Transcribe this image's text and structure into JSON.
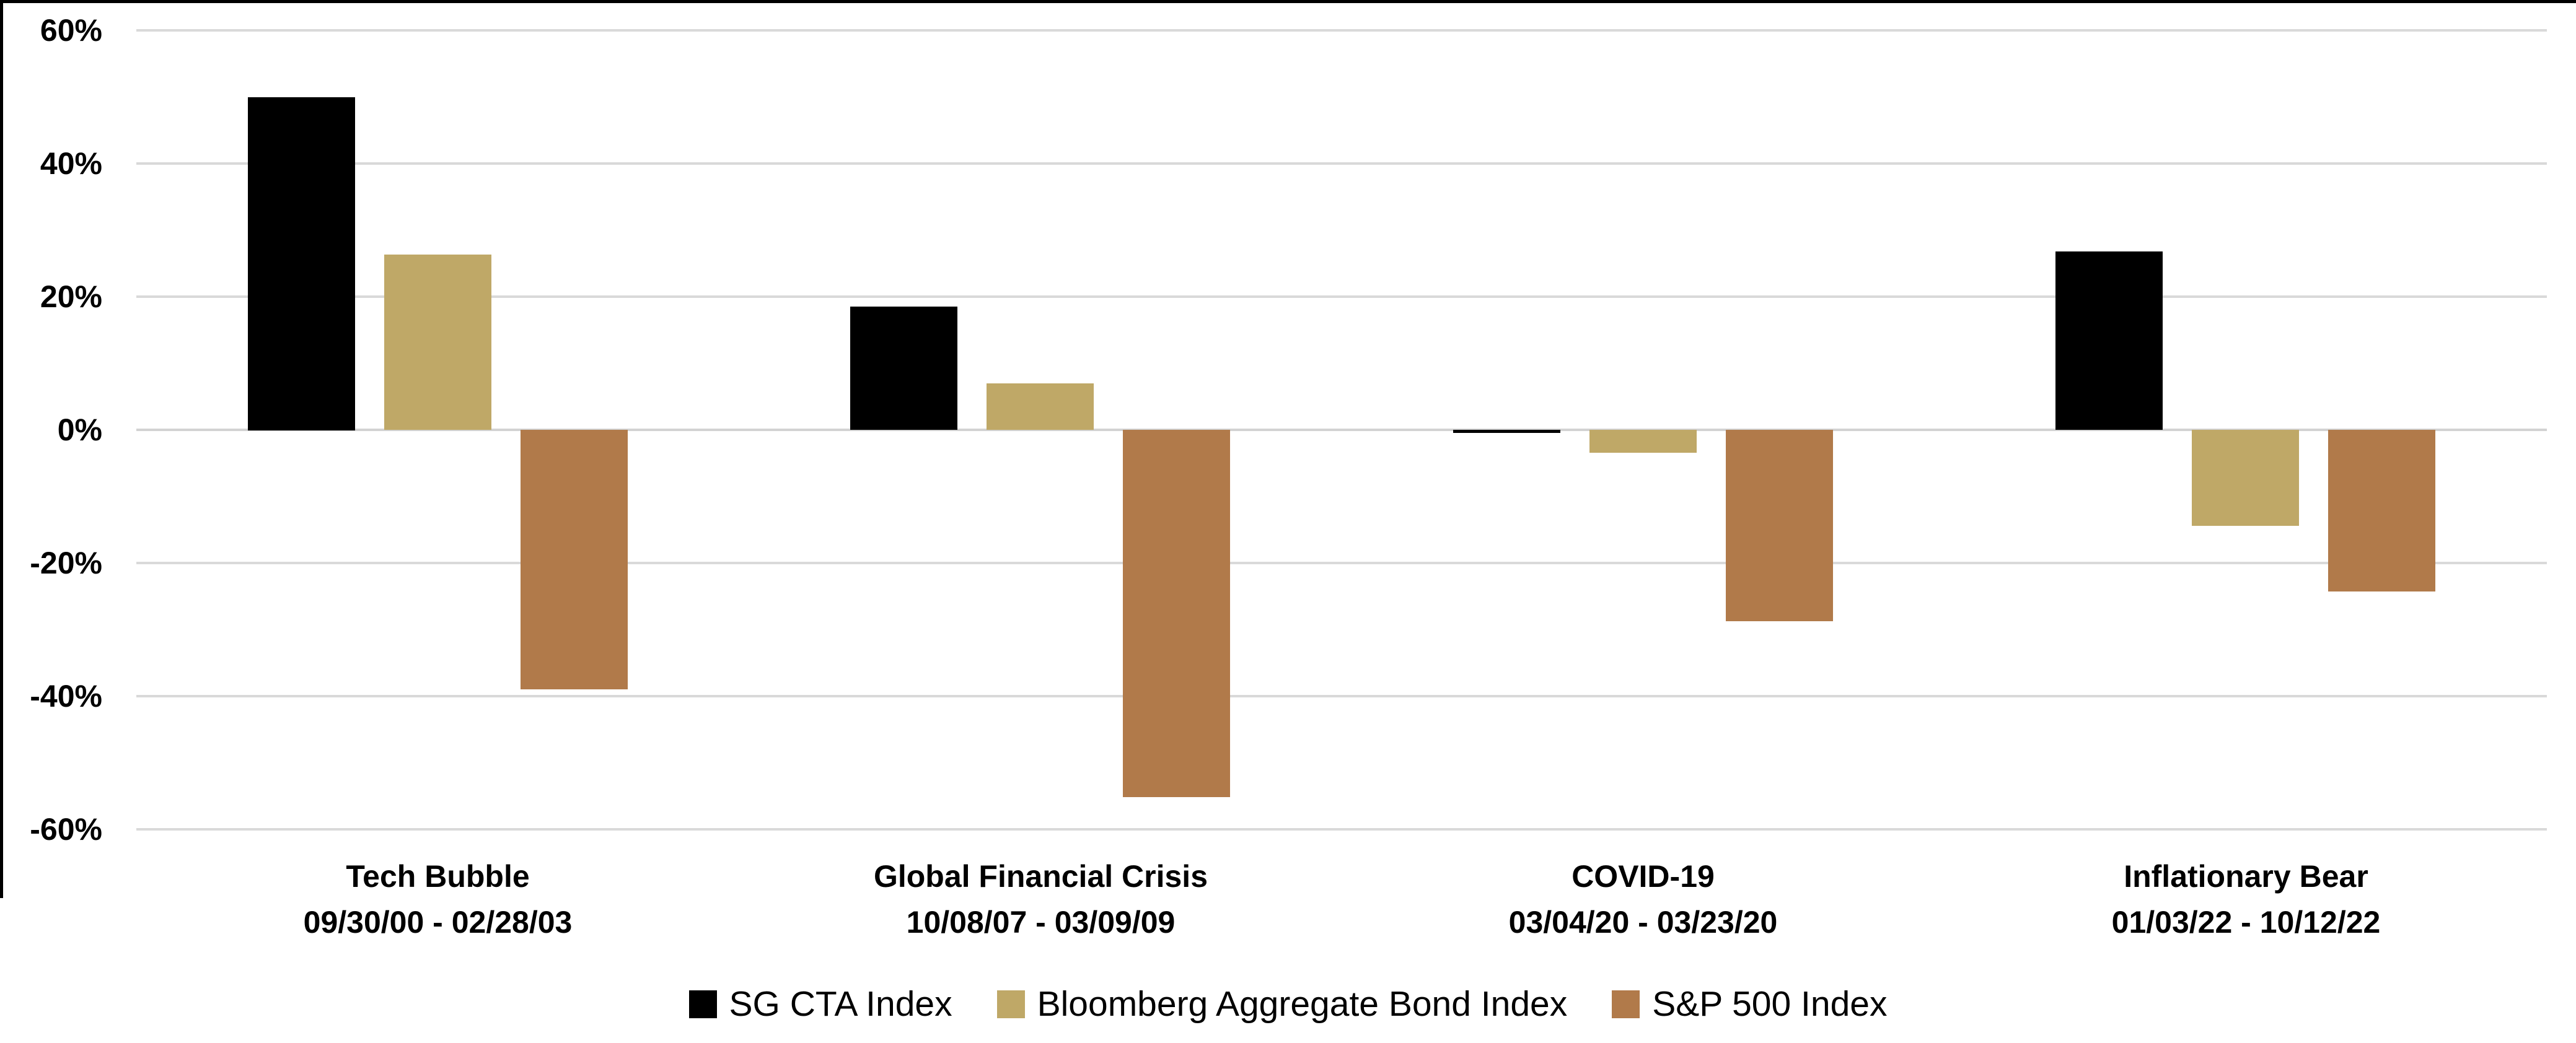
{
  "chart_data": {
    "type": "bar",
    "title": "",
    "categories": [
      "Tech Bubble",
      "Global Financial Crisis",
      "COVID-19",
      "Inflationary Bear"
    ],
    "category_dates": [
      "09/30/00 - 02/28/03",
      "10/08/07 - 03/09/09",
      "03/04/20 - 03/23/20",
      "01/03/22 - 10/12/22"
    ],
    "series": [
      {
        "name": "SG CTA Index",
        "color": "#000000",
        "values": [
          50.0,
          18.5,
          -0.5,
          26.8
        ]
      },
      {
        "name": "Bloomberg Aggregate Bond Index",
        "color": "#BFA867",
        "values": [
          26.3,
          7.0,
          -3.4,
          -14.4
        ]
      },
      {
        "name": "S&P 500 Index",
        "color": "#B17A4A",
        "values": [
          -39.0,
          -55.2,
          -28.7,
          -24.3
        ]
      }
    ],
    "ylabel": "",
    "xlabel": "",
    "ylim": [
      -60,
      60
    ],
    "ytick_step": 20,
    "ytick_labels": [
      "60%",
      "40%",
      "20%",
      "0%",
      "-20%",
      "-40%",
      "-60%"
    ],
    "grid": true,
    "legend_position": "bottom"
  },
  "colors": {
    "background": "#FFFFFF",
    "gridline": "#D9D9D9",
    "zero_line": "#D2D2D2",
    "frame_border": "#000000",
    "text": "#000000"
  }
}
